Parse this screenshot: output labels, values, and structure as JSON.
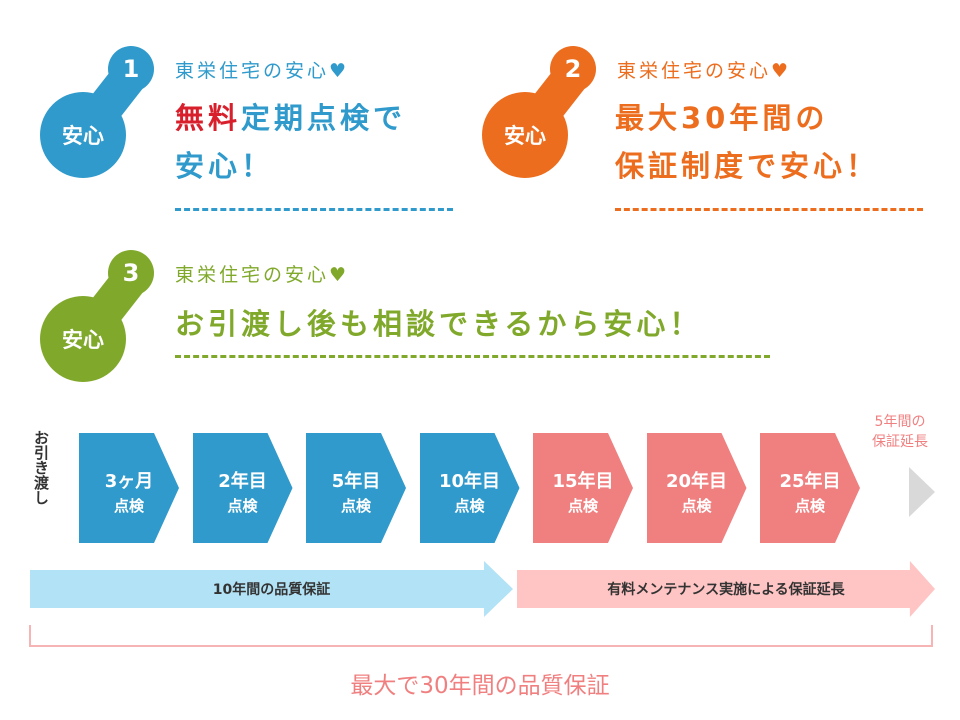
{
  "colors": {
    "blue": "#2f9acb",
    "orange": "#ec6d1e",
    "green": "#80a92c",
    "red": "#d8202c",
    "pink": "#f08080",
    "light_blue": "#b2e2f6",
    "light_pink": "#ffc4c4",
    "gray": "#d9d9d9"
  },
  "cards": [
    {
      "number": "1",
      "badge": "安心",
      "subtitle": "東栄住宅の安心♥",
      "title_em": "無料",
      "title_rest": "定期点検で",
      "title_line2": "安心！"
    },
    {
      "number": "2",
      "badge": "安心",
      "subtitle": "東栄住宅の安心♥",
      "title_line1": "最大30年間の",
      "title_line2": "保証制度で安心！"
    },
    {
      "number": "3",
      "badge": "安心",
      "subtitle": "東栄住宅の安心♥",
      "title_line1": "お引渡し後も相談できるから安心！"
    }
  ],
  "timeline": {
    "start_label": "お引き渡し",
    "steps": [
      {
        "year": "3ヶ月",
        "label": "点検"
      },
      {
        "year": "2年目",
        "label": "点検"
      },
      {
        "year": "5年目",
        "label": "点検"
      },
      {
        "year": "10年目",
        "label": "点検"
      },
      {
        "year": "15年目",
        "label": "点検"
      },
      {
        "year": "20年目",
        "label": "点検"
      },
      {
        "year": "25年目",
        "label": "点検"
      }
    ],
    "extension_note_1": "5年間の",
    "extension_note_2": "保証延長",
    "band_1": "10年間の品質保証",
    "band_2": "有料メンテナンス実施による保証延長",
    "total": "最大で30年間の品質保証"
  }
}
